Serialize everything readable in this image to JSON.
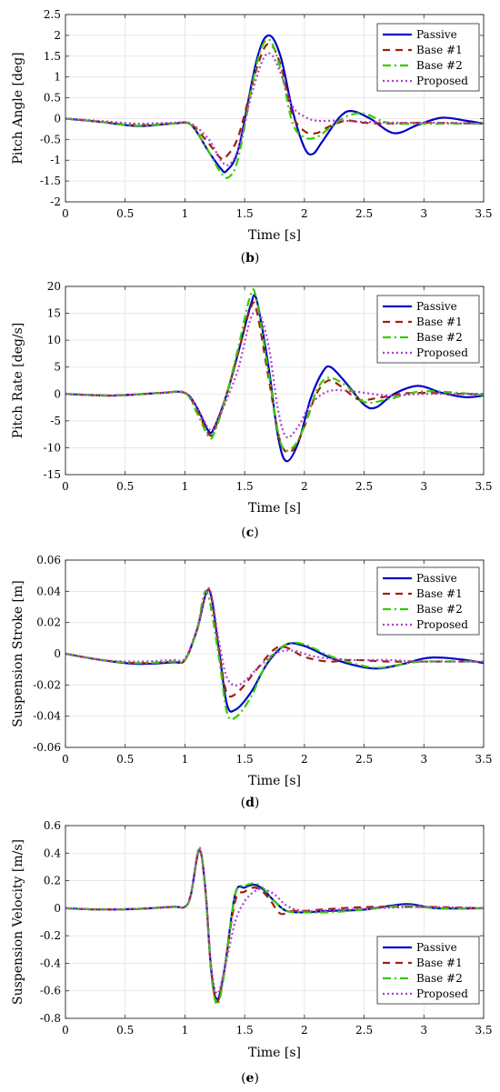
{
  "figure": {
    "panels": [
      {
        "id": "b",
        "label": "(b)",
        "letter": "b"
      },
      {
        "id": "c",
        "label": "(c)",
        "letter": "c"
      },
      {
        "id": "d",
        "label": "(d)",
        "letter": "d"
      },
      {
        "id": "e",
        "label": "(e)",
        "letter": "e"
      }
    ]
  },
  "chart_data": [
    {
      "type": "line",
      "panel": "b",
      "title": "",
      "xlabel": "Time [s]",
      "ylabel": "Pitch Angle [deg]",
      "xlim": [
        0,
        3.5
      ],
      "ylim": [
        -2,
        2.5
      ],
      "xticks": [
        "0",
        "0.5",
        "1",
        "1.5",
        "2",
        "2.5",
        "3",
        "3.5"
      ],
      "yticks": [
        "-2",
        "-1.5",
        "-1",
        "-0.5",
        "0",
        "0.5",
        "1",
        "1.5",
        "2",
        "2.5"
      ],
      "grid": true,
      "legend": "top-right",
      "series": [
        {
          "name": "Passive",
          "color": "#0000CC",
          "dash": "solid",
          "x": [
            0,
            0.3,
            0.6,
            0.9,
            1.05,
            1.2,
            1.3,
            1.35,
            1.45,
            1.6,
            1.7,
            1.8,
            1.9,
            2.0,
            2.07,
            2.15,
            2.3,
            2.4,
            2.55,
            2.75,
            2.95,
            3.15,
            3.35,
            3.5
          ],
          "y": [
            0,
            -0.08,
            -0.18,
            -0.12,
            -0.15,
            -0.8,
            -1.2,
            -1.25,
            -0.7,
            1.4,
            2.0,
            1.5,
            0.2,
            -0.7,
            -0.85,
            -0.55,
            0.05,
            0.18,
            0.0,
            -0.35,
            -0.15,
            0.02,
            -0.05,
            -0.12
          ]
        },
        {
          "name": "Base #1",
          "color": "#A0200A",
          "dash": "8,6",
          "x": [
            0,
            0.3,
            0.6,
            0.9,
            1.05,
            1.2,
            1.3,
            1.35,
            1.45,
            1.6,
            1.7,
            1.8,
            1.9,
            2.0,
            2.1,
            2.2,
            2.35,
            2.5,
            2.7,
            3.0,
            3.5
          ],
          "y": [
            0,
            -0.08,
            -0.16,
            -0.12,
            -0.14,
            -0.6,
            -0.95,
            -0.9,
            -0.4,
            1.2,
            1.8,
            1.3,
            0.1,
            -0.3,
            -0.35,
            -0.2,
            -0.05,
            -0.1,
            -0.12,
            -0.1,
            -0.12
          ]
        },
        {
          "name": "Base #2",
          "color": "#33CC00",
          "dash": "9,4,2,4",
          "x": [
            0,
            0.3,
            0.6,
            0.9,
            1.05,
            1.2,
            1.3,
            1.37,
            1.45,
            1.6,
            1.7,
            1.8,
            1.9,
            2.0,
            2.1,
            2.2,
            2.35,
            2.5,
            2.7,
            3.0,
            3.5
          ],
          "y": [
            0,
            -0.08,
            -0.17,
            -0.12,
            -0.15,
            -0.8,
            -1.3,
            -1.4,
            -0.9,
            1.3,
            1.9,
            1.2,
            -0.1,
            -0.45,
            -0.45,
            -0.25,
            0.05,
            0.12,
            -0.1,
            -0.12,
            -0.12
          ]
        },
        {
          "name": "Proposed",
          "color": "#B03CD0",
          "dash": "2,3",
          "x": [
            0,
            0.3,
            0.6,
            0.9,
            1.05,
            1.2,
            1.3,
            1.37,
            1.45,
            1.55,
            1.65,
            1.72,
            1.8,
            1.9,
            2.0,
            2.1,
            2.3,
            2.5,
            2.8,
            3.1,
            3.5
          ],
          "y": [
            0,
            -0.06,
            -0.12,
            -0.1,
            -0.12,
            -0.5,
            -1.0,
            -1.1,
            -0.7,
            0.5,
            1.4,
            1.55,
            1.1,
            0.3,
            0.05,
            -0.05,
            -0.05,
            -0.08,
            -0.1,
            -0.1,
            -0.12
          ]
        }
      ]
    },
    {
      "type": "line",
      "panel": "c",
      "title": "",
      "xlabel": "Time [s]",
      "ylabel": "Pitch Rate [deg/s]",
      "xlim": [
        0,
        3.5
      ],
      "ylim": [
        -15,
        20
      ],
      "xticks": [
        "0",
        "0.5",
        "1",
        "1.5",
        "2",
        "2.5",
        "3",
        "3.5"
      ],
      "yticks": [
        "-15",
        "-10",
        "-5",
        "0",
        "5",
        "10",
        "15",
        "20"
      ],
      "grid": true,
      "legend": "top-right",
      "series": [
        {
          "name": "Passive",
          "color": "#0000CC",
          "dash": "solid",
          "x": [
            0,
            0.4,
            0.8,
            1.0,
            1.1,
            1.2,
            1.25,
            1.35,
            1.45,
            1.55,
            1.6,
            1.7,
            1.78,
            1.85,
            1.95,
            2.05,
            2.15,
            2.22,
            2.35,
            2.5,
            2.6,
            2.75,
            2.95,
            3.15,
            3.35,
            3.5
          ],
          "y": [
            0,
            -0.3,
            0.2,
            0.2,
            -2.5,
            -7,
            -6,
            0,
            8,
            16.5,
            17.5,
            5,
            -8,
            -12.5,
            -9,
            -1,
            4,
            5,
            2,
            -2,
            -2.5,
            0,
            1.5,
            0.2,
            -0.6,
            -0.3
          ]
        },
        {
          "name": "Base #1",
          "color": "#A0200A",
          "dash": "8,6",
          "x": [
            0,
            0.4,
            0.8,
            1.0,
            1.1,
            1.2,
            1.25,
            1.35,
            1.45,
            1.55,
            1.6,
            1.7,
            1.8,
            1.9,
            2.0,
            2.1,
            2.2,
            2.3,
            2.45,
            2.6,
            2.8,
            3.0,
            3.5
          ],
          "y": [
            0,
            -0.3,
            0.2,
            0.2,
            -3,
            -7.5,
            -6.5,
            0,
            8,
            16,
            15.5,
            3,
            -9,
            -10.5,
            -6,
            0,
            2.5,
            1.5,
            -1,
            -0.8,
            0,
            0.2,
            -0.1
          ]
        },
        {
          "name": "Base #2",
          "color": "#33CC00",
          "dash": "9,4,2,4",
          "x": [
            0,
            0.4,
            0.8,
            1.0,
            1.1,
            1.2,
            1.25,
            1.35,
            1.45,
            1.55,
            1.6,
            1.7,
            1.8,
            1.9,
            2.0,
            2.1,
            2.2,
            2.35,
            2.5,
            2.7,
            3.0,
            3.5
          ],
          "y": [
            0,
            -0.3,
            0.2,
            0.2,
            -3.5,
            -8,
            -7,
            0,
            9,
            18.5,
            17.5,
            4,
            -9,
            -10,
            -6,
            0.5,
            3,
            1.5,
            -1.5,
            -1,
            0.5,
            -0.2
          ]
        },
        {
          "name": "Proposed",
          "color": "#B03CD0",
          "dash": "2,3",
          "x": [
            0,
            0.4,
            0.8,
            1.0,
            1.1,
            1.2,
            1.25,
            1.35,
            1.45,
            1.55,
            1.62,
            1.7,
            1.78,
            1.85,
            1.95,
            2.05,
            2.2,
            2.4,
            2.7,
            3.0,
            3.5
          ],
          "y": [
            0,
            -0.3,
            0.2,
            0.2,
            -2.5,
            -6.5,
            -6,
            -1,
            5,
            14,
            15,
            9,
            -3,
            -8,
            -6,
            -2,
            0.5,
            0.5,
            -0.3,
            0,
            0
          ]
        }
      ]
    },
    {
      "type": "line",
      "panel": "d",
      "title": "",
      "xlabel": "Time [s]",
      "ylabel": "Suspension Stroke [m]",
      "xlim": [
        0,
        3.5
      ],
      "ylim": [
        -0.06,
        0.06
      ],
      "xticks": [
        "0",
        "0.5",
        "1",
        "1.5",
        "2",
        "2.5",
        "3",
        "3.5"
      ],
      "yticks": [
        "-0.06",
        "-0.04",
        "-0.02",
        "0",
        "0.02",
        "0.04",
        "0.06"
      ],
      "grid": true,
      "legend": "top-right",
      "series": [
        {
          "name": "Passive",
          "color": "#0000CC",
          "dash": "solid",
          "x": [
            0,
            0.3,
            0.6,
            0.9,
            1.0,
            1.1,
            1.2,
            1.28,
            1.35,
            1.42,
            1.55,
            1.7,
            1.85,
            2.0,
            2.2,
            2.4,
            2.6,
            2.8,
            3.0,
            3.15,
            3.35,
            3.5
          ],
          "y": [
            0,
            -0.004,
            -0.0065,
            -0.0055,
            -0.004,
            0.015,
            0.041,
            0.005,
            -0.032,
            -0.036,
            -0.025,
            -0.005,
            0.006,
            0.005,
            -0.002,
            -0.007,
            -0.0095,
            -0.007,
            -0.003,
            -0.0025,
            -0.004,
            -0.006
          ]
        },
        {
          "name": "Base #1",
          "color": "#A0200A",
          "dash": "8,6",
          "x": [
            0,
            0.3,
            0.6,
            0.9,
            1.0,
            1.1,
            1.2,
            1.28,
            1.35,
            1.45,
            1.6,
            1.75,
            1.85,
            2.0,
            2.2,
            2.4,
            2.7,
            3.0,
            3.5
          ],
          "y": [
            0,
            -0.004,
            -0.006,
            -0.005,
            -0.004,
            0.015,
            0.041,
            0.005,
            -0.025,
            -0.024,
            -0.01,
            0.003,
            0.004,
            -0.002,
            -0.005,
            -0.004,
            -0.005,
            -0.005,
            -0.005
          ]
        },
        {
          "name": "Base #2",
          "color": "#33CC00",
          "dash": "9,4,2,4",
          "x": [
            0,
            0.3,
            0.6,
            0.9,
            1.0,
            1.1,
            1.18,
            1.28,
            1.35,
            1.42,
            1.55,
            1.7,
            1.85,
            2.0,
            2.2,
            2.4,
            2.6,
            2.8,
            3.0,
            3.5
          ],
          "y": [
            0,
            -0.004,
            -0.006,
            -0.005,
            -0.004,
            0.015,
            0.04,
            0.0,
            -0.037,
            -0.041,
            -0.028,
            -0.004,
            0.006,
            0.006,
            -0.001,
            -0.006,
            -0.009,
            -0.007,
            -0.005,
            -0.005
          ]
        },
        {
          "name": "Proposed",
          "color": "#B03CD0",
          "dash": "2,3",
          "x": [
            0,
            0.3,
            0.6,
            0.9,
            1.0,
            1.1,
            1.2,
            1.28,
            1.35,
            1.45,
            1.6,
            1.75,
            1.9,
            2.1,
            2.4,
            2.7,
            3.0,
            3.5
          ],
          "y": [
            0,
            -0.004,
            -0.005,
            -0.004,
            -0.003,
            0.016,
            0.042,
            0.01,
            -0.015,
            -0.02,
            -0.01,
            0.0,
            0.002,
            -0.002,
            -0.004,
            -0.004,
            -0.005,
            -0.005
          ]
        }
      ]
    },
    {
      "type": "line",
      "panel": "e",
      "title": "",
      "xlabel": "Time [s]",
      "ylabel": "Suspension Velocity [m/s]",
      "xlim": [
        0,
        3.5
      ],
      "ylim": [
        -0.8,
        0.6
      ],
      "xticks": [
        "0",
        "0.5",
        "1",
        "1.5",
        "2",
        "2.5",
        "3",
        "3.5"
      ],
      "yticks": [
        "-0.8",
        "-0.6",
        "-0.4",
        "-0.2",
        "0",
        "0.2",
        "0.4",
        "0.6"
      ],
      "grid": true,
      "legend": "bottom-right",
      "series": [
        {
          "name": "Passive",
          "color": "#0000CC",
          "dash": "solid",
          "x": [
            0,
            0.3,
            0.6,
            0.9,
            1.0,
            1.05,
            1.12,
            1.17,
            1.22,
            1.27,
            1.33,
            1.42,
            1.5,
            1.58,
            1.65,
            1.75,
            1.85,
            2.0,
            2.2,
            2.5,
            2.85,
            3.1,
            3.5
          ],
          "y": [
            0,
            -0.01,
            -0.005,
            0.01,
            0.01,
            0.1,
            0.42,
            0.15,
            -0.45,
            -0.66,
            -0.45,
            0.1,
            0.15,
            0.17,
            0.14,
            0.05,
            -0.02,
            -0.03,
            -0.02,
            -0.01,
            0.03,
            0.0,
            0.0
          ]
        },
        {
          "name": "Base #1",
          "color": "#A0200A",
          "dash": "8,6",
          "x": [
            0,
            0.3,
            0.6,
            0.9,
            1.0,
            1.05,
            1.12,
            1.17,
            1.22,
            1.27,
            1.33,
            1.42,
            1.5,
            1.58,
            1.65,
            1.72,
            1.8,
            1.9,
            2.0,
            2.3,
            2.6,
            3.0,
            3.5
          ],
          "y": [
            0,
            -0.01,
            -0.005,
            0.01,
            0.01,
            0.1,
            0.42,
            0.15,
            -0.45,
            -0.68,
            -0.45,
            0.05,
            0.12,
            0.15,
            0.12,
            0.05,
            -0.04,
            -0.02,
            -0.02,
            0.0,
            0.01,
            0.01,
            0.0
          ]
        },
        {
          "name": "Base #2",
          "color": "#33CC00",
          "dash": "9,4,2,4",
          "x": [
            0,
            0.3,
            0.6,
            0.9,
            1.0,
            1.05,
            1.12,
            1.17,
            1.22,
            1.27,
            1.33,
            1.42,
            1.5,
            1.58,
            1.65,
            1.75,
            1.85,
            2.0,
            2.2,
            2.5,
            2.85,
            3.1,
            3.5
          ],
          "y": [
            0,
            -0.01,
            -0.005,
            0.01,
            0.01,
            0.1,
            0.43,
            0.14,
            -0.47,
            -0.7,
            -0.47,
            0.1,
            0.16,
            0.18,
            0.15,
            0.05,
            -0.02,
            -0.03,
            -0.03,
            -0.01,
            0.02,
            0.0,
            0.0
          ]
        },
        {
          "name": "Proposed",
          "color": "#B03CD0",
          "dash": "2,3",
          "x": [
            0,
            0.3,
            0.6,
            0.9,
            1.0,
            1.05,
            1.12,
            1.17,
            1.22,
            1.27,
            1.33,
            1.42,
            1.5,
            1.58,
            1.65,
            1.75,
            1.85,
            2.0,
            2.3,
            2.6,
            3.0,
            3.5
          ],
          "y": [
            0,
            -0.01,
            -0.005,
            0.01,
            0.01,
            0.1,
            0.44,
            0.15,
            -0.42,
            -0.62,
            -0.45,
            -0.1,
            0.05,
            0.12,
            0.14,
            0.1,
            0.02,
            -0.02,
            -0.01,
            0.0,
            0.01,
            0.0
          ]
        }
      ]
    }
  ]
}
